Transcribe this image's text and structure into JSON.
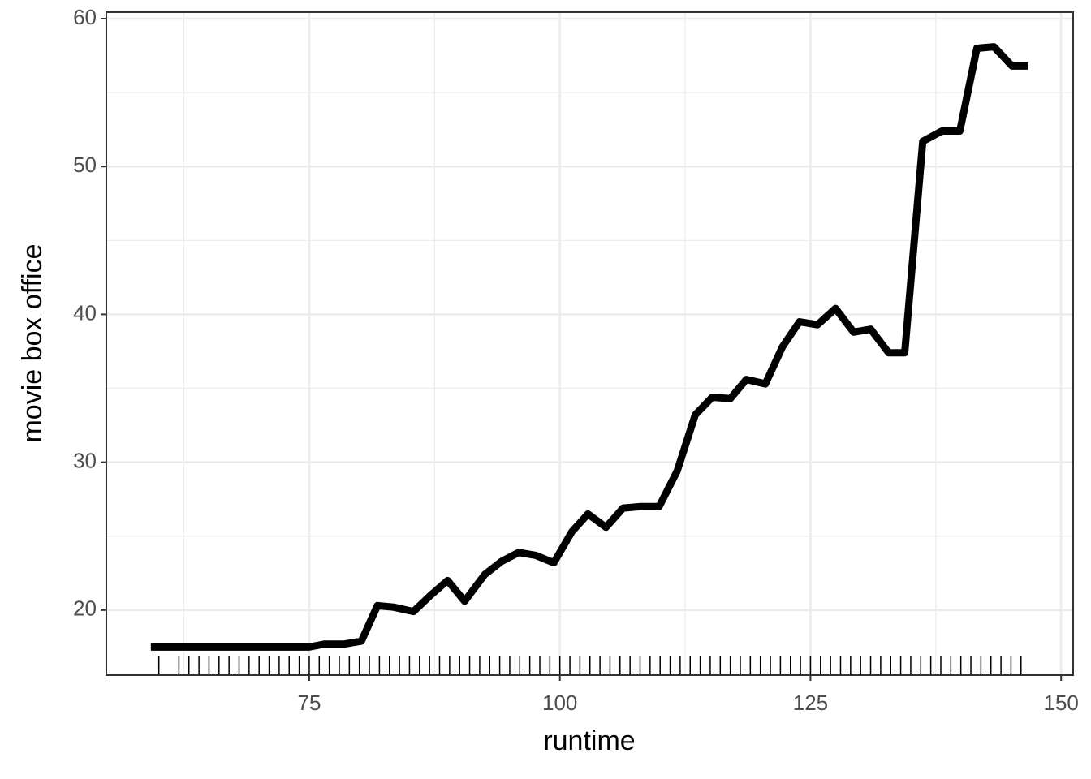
{
  "chart_data": {
    "type": "line",
    "x_label": "runtime",
    "y_label": "movie box office",
    "x": [
      59.2,
      75,
      76.5,
      78.5,
      80.2,
      81.8,
      83.4,
      85.4,
      87.1,
      88.8,
      90.5,
      92.5,
      94.2,
      95.9,
      97.6,
      99.4,
      101.2,
      102.8,
      104.6,
      106.3,
      108.1,
      109.9,
      111.7,
      113.5,
      115.2,
      117,
      118.6,
      120.5,
      122.2,
      123.9,
      125.7,
      127.5,
      129.3,
      131,
      132.8,
      134.4,
      136.2,
      138.1,
      139.9,
      141.6,
      143.3,
      145.1,
      146.7
    ],
    "series": [
      {
        "color": "#000000",
        "values": [
          17.5,
          17.5,
          17.7,
          17.7,
          17.9,
          20.3,
          20.2,
          19.9,
          21.0,
          22.0,
          20.6,
          22.4,
          23.3,
          23.9,
          23.7,
          23.2,
          25.3,
          26.5,
          25.6,
          26.9,
          27.0,
          27.0,
          29.4,
          33.2,
          34.4,
          34.3,
          35.6,
          35.3,
          37.8,
          39.5,
          39.3,
          40.4,
          38.8,
          39.0,
          37.4,
          37.4,
          51.7,
          52.4,
          52.4,
          58.0,
          58.1,
          56.8,
          56.8
        ]
      }
    ],
    "rug_x": [
      60,
      62,
      63,
      64,
      65,
      66,
      67,
      68,
      69,
      70,
      71,
      72,
      73,
      74,
      75,
      76,
      77,
      78,
      79,
      80,
      81,
      82,
      83,
      84,
      85,
      86,
      87,
      88,
      89,
      90,
      91,
      92,
      93,
      94,
      95,
      96,
      97,
      98,
      99,
      100,
      101,
      102,
      103,
      104,
      105,
      106,
      107,
      108,
      109,
      110,
      111,
      112,
      113,
      114,
      115,
      116,
      117,
      118,
      119,
      120,
      121,
      122,
      123,
      124,
      125,
      126,
      127,
      128,
      129,
      130,
      131,
      132,
      133,
      134,
      135,
      136,
      137,
      138,
      139,
      140,
      141,
      142,
      143,
      144,
      145,
      146
    ],
    "xlim": [
      54.76,
      151.2
    ],
    "ylim": [
      15.6,
      60.44
    ],
    "xticks": [
      75,
      100,
      125,
      150
    ],
    "yticks": [
      20,
      30,
      40,
      50,
      60
    ],
    "x_minor_grid": [
      62.5,
      87.5,
      112.5,
      137.5
    ],
    "y_minor_grid": [
      25,
      35,
      45,
      55
    ],
    "grid": true
  }
}
